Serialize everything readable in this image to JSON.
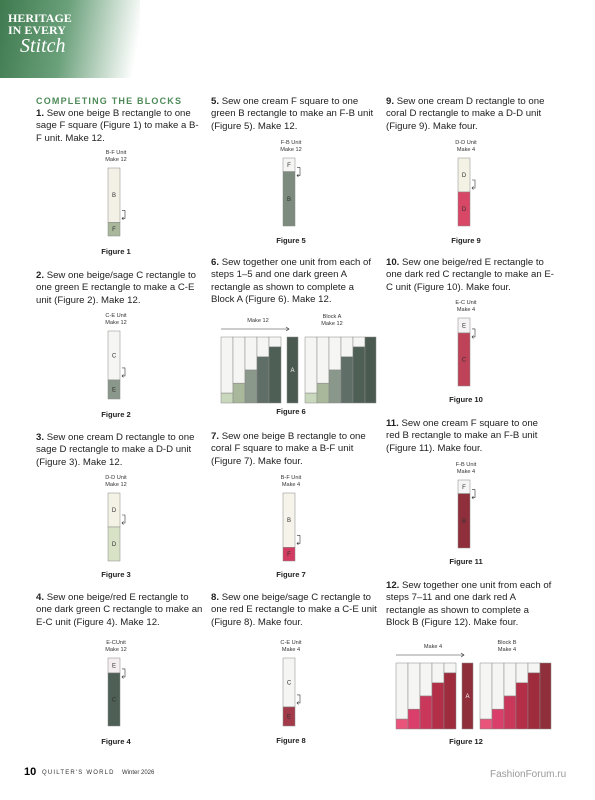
{
  "header": {
    "logo": [
      "HERITAGE",
      "IN EVERY",
      "Stitch"
    ]
  },
  "section_title": "COMPLETING THE BLOCKS",
  "steps": [
    {
      "number": "1.",
      "text": "Sew one beige B rectangle to one sage F square (Figure 1) to make a B-F unit. Make 12.",
      "figure": {
        "unit": "B-F Unit",
        "make": "Make 12",
        "pieces": [
          "B",
          "F"
        ],
        "caption": "Figure 1"
      }
    },
    {
      "number": "2.",
      "text": "Sew one beige/sage C rectangle to one green E rectangle to make a C-E unit (Figure 2). Make 12.",
      "figure": {
        "unit": "C-E Unit",
        "make": "Make 12",
        "pieces": [
          "C",
          "E"
        ],
        "caption": "Figure 2"
      }
    },
    {
      "number": "3.",
      "text": "Sew one cream D rectangle to one sage D rectangle to make a D-D unit (Figure 3). Make 12.",
      "figure": {
        "unit": "D-D Unit",
        "make": "Make 12",
        "pieces": [
          "D",
          "D"
        ],
        "caption": "Figure 3"
      }
    },
    {
      "number": "4.",
      "text": "Sew one beige/red E rectangle to one dark green C rectangle to make an E-C unit (Figure 4). Make 12.",
      "figure": {
        "unit": "E-CUnit",
        "make": "Make 12",
        "pieces": [
          "E",
          "C"
        ],
        "caption": "Figure 4"
      }
    },
    {
      "number": "5.",
      "text": "Sew one cream F square to one green B rectangle to make an F-B unit (Figure 5). Make 12.",
      "figure": {
        "unit": "F-B Unit",
        "make": "Make 12",
        "pieces": [
          "F",
          "B"
        ],
        "caption": "Figure 5"
      }
    },
    {
      "number": "6.",
      "text": "Sew together one unit from each of steps 1–5 and one dark green A rectangle as shown to complete a Block A (Figure 6). Make 12.",
      "figure": {
        "labels": [
          "Make 12",
          "Block A",
          "Make 12"
        ],
        "pieces": [
          "A"
        ],
        "caption": "Figure 6"
      }
    },
    {
      "number": "7.",
      "text": "Sew one beige B rectangle to one coral F square to make a B-F unit (Figure 7). Make four.",
      "figure": {
        "unit": "B-F Unit",
        "make": "Make 4",
        "pieces": [
          "B",
          "F"
        ],
        "caption": "Figure 7"
      }
    },
    {
      "number": "8.",
      "text": "Sew one beige/sage C rectangle to one red E rectangle to make a C-E unit (Figure 8). Make four.",
      "figure": {
        "unit": "C-E Unit",
        "make": "Make 4",
        "pieces": [
          "C",
          "E"
        ],
        "caption": "Figure 8"
      }
    },
    {
      "number": "9.",
      "text": "Sew one cream D rectangle to one coral D rectangle to make a D-D unit (Figure 9). Make four.",
      "figure": {
        "unit": "D-D Unit",
        "make": "Make 4",
        "pieces": [
          "D",
          "D"
        ],
        "caption": "Figure 9"
      }
    },
    {
      "number": "10.",
      "text": "Sew one beige/red E rectangle to one dark red C rectangle to make an E-C unit (Figure 10). Make four.",
      "figure": {
        "unit": "E-C Unit",
        "make": "Make 4",
        "pieces": [
          "E",
          "C"
        ],
        "caption": "Figure 10"
      }
    },
    {
      "number": "11.",
      "text": "Sew one cream F square to one red B rectangle to make an F-B unit (Figure 11). Make four.",
      "figure": {
        "unit": "F-B Unit",
        "make": "Make 4",
        "pieces": [
          "F",
          "B"
        ],
        "caption": "Figure 11"
      }
    },
    {
      "number": "12.",
      "text": "Sew together one unit from each of steps 7–11 and one dark red A rectangle as shown to complete a Block B (Figure 12). Make four.",
      "figure": {
        "labels": [
          "Make 4",
          "Block B",
          "Make 4"
        ],
        "pieces": [
          "A"
        ],
        "caption": "Figure 12"
      }
    }
  ],
  "footer": {
    "page": "10",
    "magazine": "QUILTER'S WORLD",
    "issue": "Winter 2026",
    "watermark": "FashionForum.ru"
  }
}
